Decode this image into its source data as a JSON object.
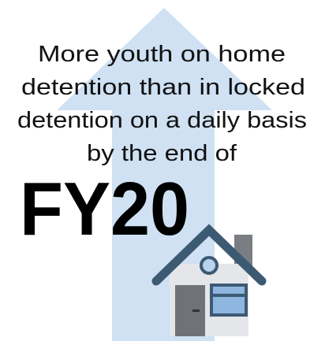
{
  "text_lines": [
    "More youth on home",
    "detention than in locked",
    "detention on a daily basis",
    "by the end of"
  ],
  "highlight": "FY20"
}
